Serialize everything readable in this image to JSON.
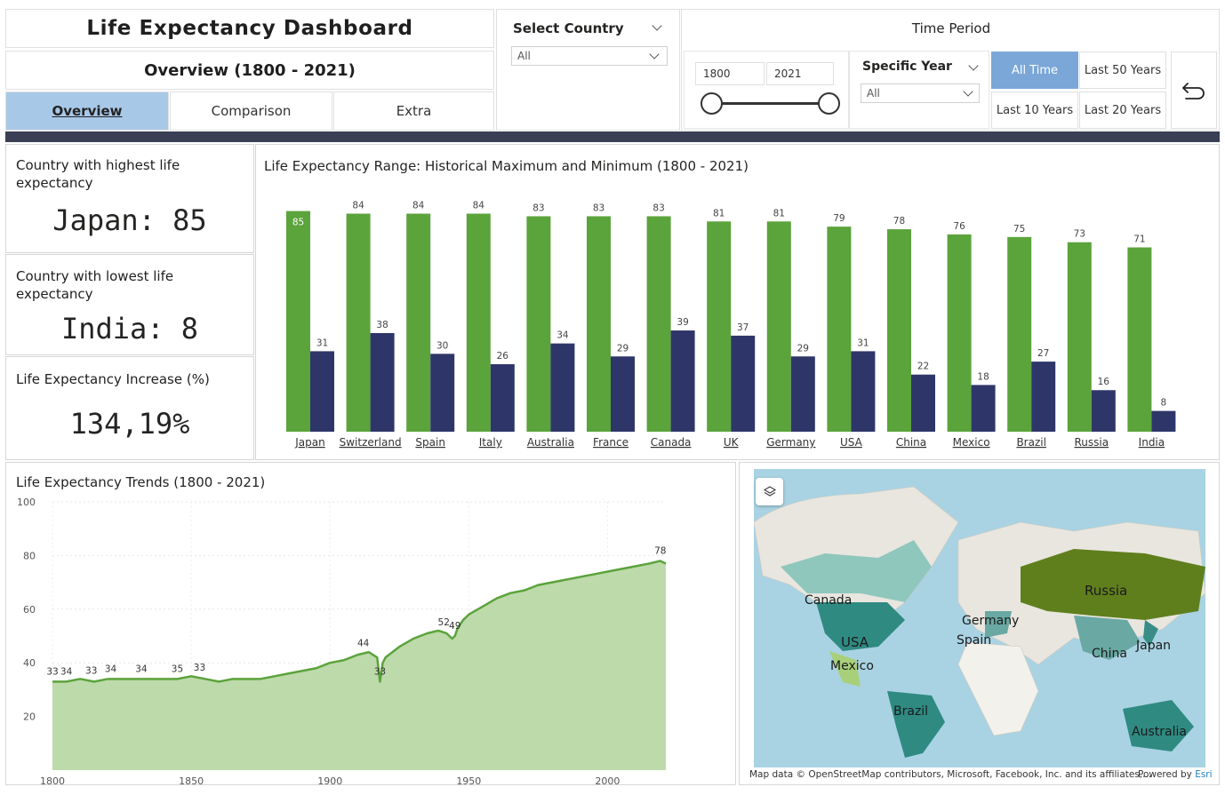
{
  "header": {
    "title": "Life Expectancy Dashboard",
    "subtitle": "Overview (1800 - 2021)"
  },
  "tabs": [
    {
      "label": "Overview",
      "active": true
    },
    {
      "label": "Comparison",
      "active": false
    },
    {
      "label": "Extra",
      "active": false
    }
  ],
  "country_slicer": {
    "label": "Select Country",
    "value": "All"
  },
  "time_period": {
    "label": "Time Period",
    "range_start": "1800",
    "range_end": "2021",
    "specific_year_label": "Specific Year",
    "specific_year_value": "All",
    "buttons": [
      "All Time",
      "Last 50 Years",
      "Last 10 Years",
      "Last 20 Years"
    ],
    "selected": "All Time"
  },
  "kpis": {
    "highest_label": "Country with highest life expectancy",
    "highest_value": "Japan: 85",
    "lowest_label": "Country with lowest life expectancy",
    "lowest_value": "India: 8",
    "increase_label": "Life Expectancy Increase (%)",
    "increase_value": "134,19%"
  },
  "colors": {
    "max_bar": "#5ba33b",
    "min_bar": "#2e3669",
    "area_fill": "#bddaab",
    "area_line": "#5ba33b",
    "tab_active": "#a8c8e8",
    "button_selected": "#7aa7d8",
    "header_bar": "#3a3f55"
  },
  "chart_data": [
    {
      "type": "bar",
      "title": "Life Expectancy Range: Historical Maximum and Minimum (1800 - 2021)",
      "categories": [
        "Japan",
        "Switzerland",
        "Spain",
        "Italy",
        "Australia",
        "France",
        "Canada",
        "UK",
        "Germany",
        "USA",
        "China",
        "Mexico",
        "Brazil",
        "Russia",
        "India"
      ],
      "series": [
        {
          "values": [
            85,
            84,
            84,
            84,
            83,
            83,
            83,
            81,
            81,
            79,
            78,
            76,
            75,
            73,
            71
          ]
        },
        {
          "values": [
            31,
            38,
            30,
            26,
            34,
            29,
            39,
            37,
            29,
            31,
            22,
            18,
            27,
            16,
            8
          ]
        }
      ],
      "ylim": [
        0,
        90
      ],
      "data_labels": true
    },
    {
      "type": "area",
      "title": "Life Expectancy Trends (1800 - 2021)",
      "x": [
        1800,
        1805,
        1810,
        1815,
        1820,
        1825,
        1830,
        1835,
        1840,
        1845,
        1850,
        1855,
        1860,
        1865,
        1870,
        1875,
        1880,
        1885,
        1890,
        1895,
        1900,
        1905,
        1910,
        1914,
        1917,
        1918,
        1919,
        1920,
        1925,
        1930,
        1935,
        1939,
        1942,
        1944,
        1945,
        1946,
        1948,
        1950,
        1955,
        1960,
        1965,
        1970,
        1975,
        1980,
        1985,
        1990,
        1995,
        2000,
        2005,
        2010,
        2015,
        2019,
        2021
      ],
      "y": [
        33,
        33,
        34,
        33,
        34,
        34,
        34,
        34,
        34,
        34,
        35,
        34,
        33,
        34,
        34,
        34,
        35,
        36,
        37,
        38,
        40,
        41,
        43,
        44,
        42,
        33,
        40,
        42,
        46,
        49,
        51,
        52,
        51,
        49,
        50,
        53,
        56,
        58,
        61,
        64,
        66,
        67,
        69,
        70,
        71,
        72,
        73,
        74,
        75,
        76,
        77,
        78,
        77
      ],
      "annotations": [
        {
          "x": 1800,
          "label": "33"
        },
        {
          "x": 1805,
          "label": "34"
        },
        {
          "x": 1814,
          "label": "33"
        },
        {
          "x": 1821,
          "label": "34"
        },
        {
          "x": 1832,
          "label": "34"
        },
        {
          "x": 1845,
          "label": "35"
        },
        {
          "x": 1853,
          "label": "33"
        },
        {
          "x": 1912,
          "label": "44"
        },
        {
          "x": 1918,
          "label": "33"
        },
        {
          "x": 1941,
          "label": "52"
        },
        {
          "x": 1945,
          "label": "49"
        },
        {
          "x": 2019,
          "label": "78"
        }
      ],
      "xlim": [
        1800,
        2021
      ],
      "ylim": [
        0,
        100
      ],
      "yticks": [
        20,
        40,
        60,
        80,
        100
      ],
      "xticks": [
        1800,
        1850,
        1900,
        1950,
        2000
      ],
      "grid": true
    }
  ],
  "map": {
    "labels": [
      "Canada",
      "USA",
      "Mexico",
      "Brazil",
      "Germany",
      "Spain",
      "Russia",
      "China",
      "Japan",
      "Australia"
    ],
    "attribution": "Map data © OpenStreetMap contributors, Microsoft, Facebook, Inc. and its affiliates,...",
    "powered_by": "Powered by",
    "powered_by_brand": "Esri",
    "layers_icon": "layers-icon"
  },
  "reset_icon": "undo-arrow-icon"
}
